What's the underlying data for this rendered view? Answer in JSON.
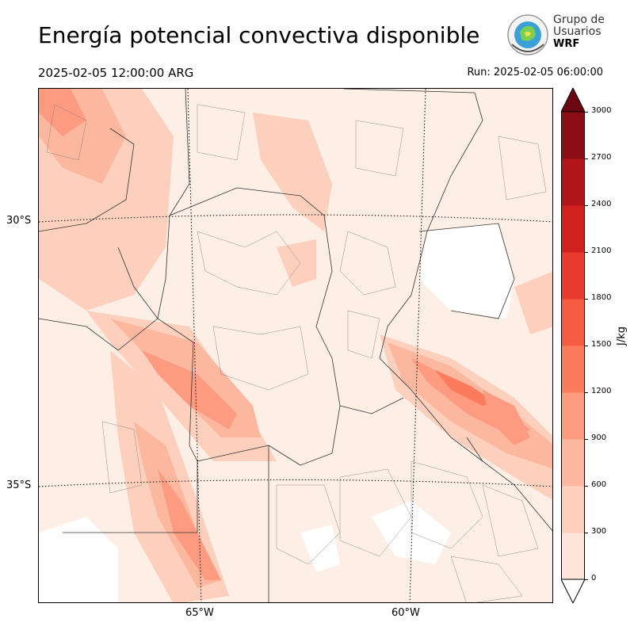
{
  "title": "Energía potencial convectiva disponible",
  "valid_time": "2025-02-05 12:00:00 ARG",
  "run_time": "Run: 2025-02-05 06:00:00",
  "logo": {
    "line1": "Grupo de",
    "line2": "Usuarios",
    "line3": "WRF"
  },
  "map": {
    "lat_labels": [
      "30°S",
      "35°S"
    ],
    "lon_labels": [
      "65°W",
      "60°W"
    ]
  },
  "colorbar": {
    "unit": "J/kg",
    "ticks": [
      "0",
      "300",
      "600",
      "900",
      "1200",
      "1500",
      "1800",
      "2100",
      "2400",
      "2700",
      "3000"
    ],
    "colors": [
      "#fee5d9",
      "#fcd0bd",
      "#fcb79f",
      "#fc9b80",
      "#fb7c5c",
      "#f45b40",
      "#e83a2e",
      "#d0211e",
      "#af1519",
      "#8c0d14",
      "#6b0710"
    ]
  }
}
